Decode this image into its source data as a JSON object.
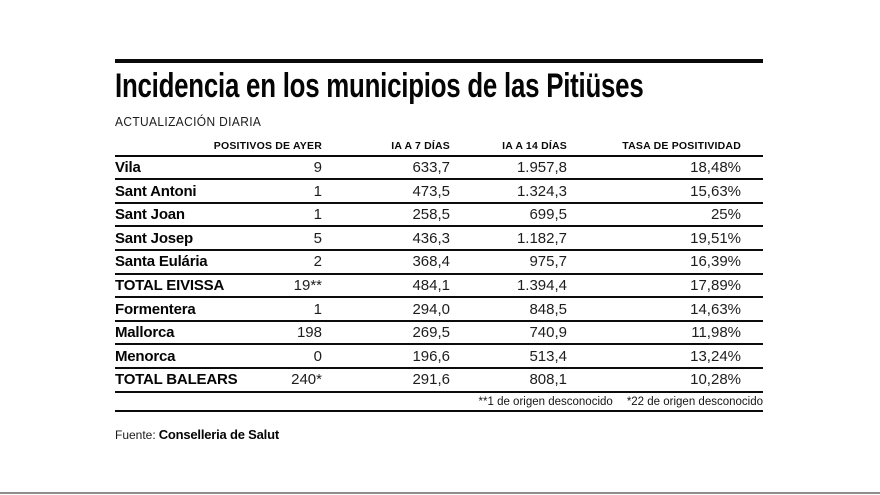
{
  "header": {
    "title": "Incidencia en los municipios de las Pitiüses",
    "subtitle": "ACTUALIZACIÓN DIARIA"
  },
  "chart_data": {
    "type": "table",
    "title": "Incidencia en los municipios de las Pitiüses",
    "subtitle": "ACTUALIZACIÓN DIARIA",
    "columns": [
      "POSITIVOS DE AYER",
      "IA A 7 DÍAS",
      "IA A 14 DÍAS",
      "TASA DE POSITIVIDAD"
    ],
    "rows": [
      [
        "Vila",
        "9",
        "633,7",
        "1.957,8",
        "18,48%"
      ],
      [
        "Sant Antoni",
        "1",
        "473,5",
        "1.324,3",
        "15,63%"
      ],
      [
        "Sant Joan",
        "1",
        "258,5",
        "699,5",
        "25%"
      ],
      [
        "Sant Josep",
        "5",
        "436,3",
        "1.182,7",
        "19,51%"
      ],
      [
        "Santa Eulária",
        "2",
        "368,4",
        "975,7",
        "16,39%"
      ],
      [
        "TOTAL EIVISSA",
        "19**",
        "484,1",
        "1.394,4",
        "17,89%"
      ],
      [
        "Formentera",
        "1",
        "294,0",
        "848,5",
        "14,63%"
      ],
      [
        "Mallorca",
        "198",
        "269,5",
        "740,9",
        "11,98%"
      ],
      [
        "Menorca",
        "0",
        "196,6",
        "513,4",
        "13,24%"
      ],
      [
        "TOTAL BALEARS",
        "240*",
        "291,6",
        "808,1",
        "10,28%"
      ]
    ],
    "footnotes": [
      "**1 de origen desconocido",
      "*22 de origen desconocido"
    ]
  },
  "source": {
    "label": "Fuente:",
    "value": "Conselleria de Salut"
  },
  "colors": {
    "background": "#ffffff",
    "text": "#000000",
    "rule": "#0a0a0a",
    "bottom_divider": "#8e8e8e"
  }
}
